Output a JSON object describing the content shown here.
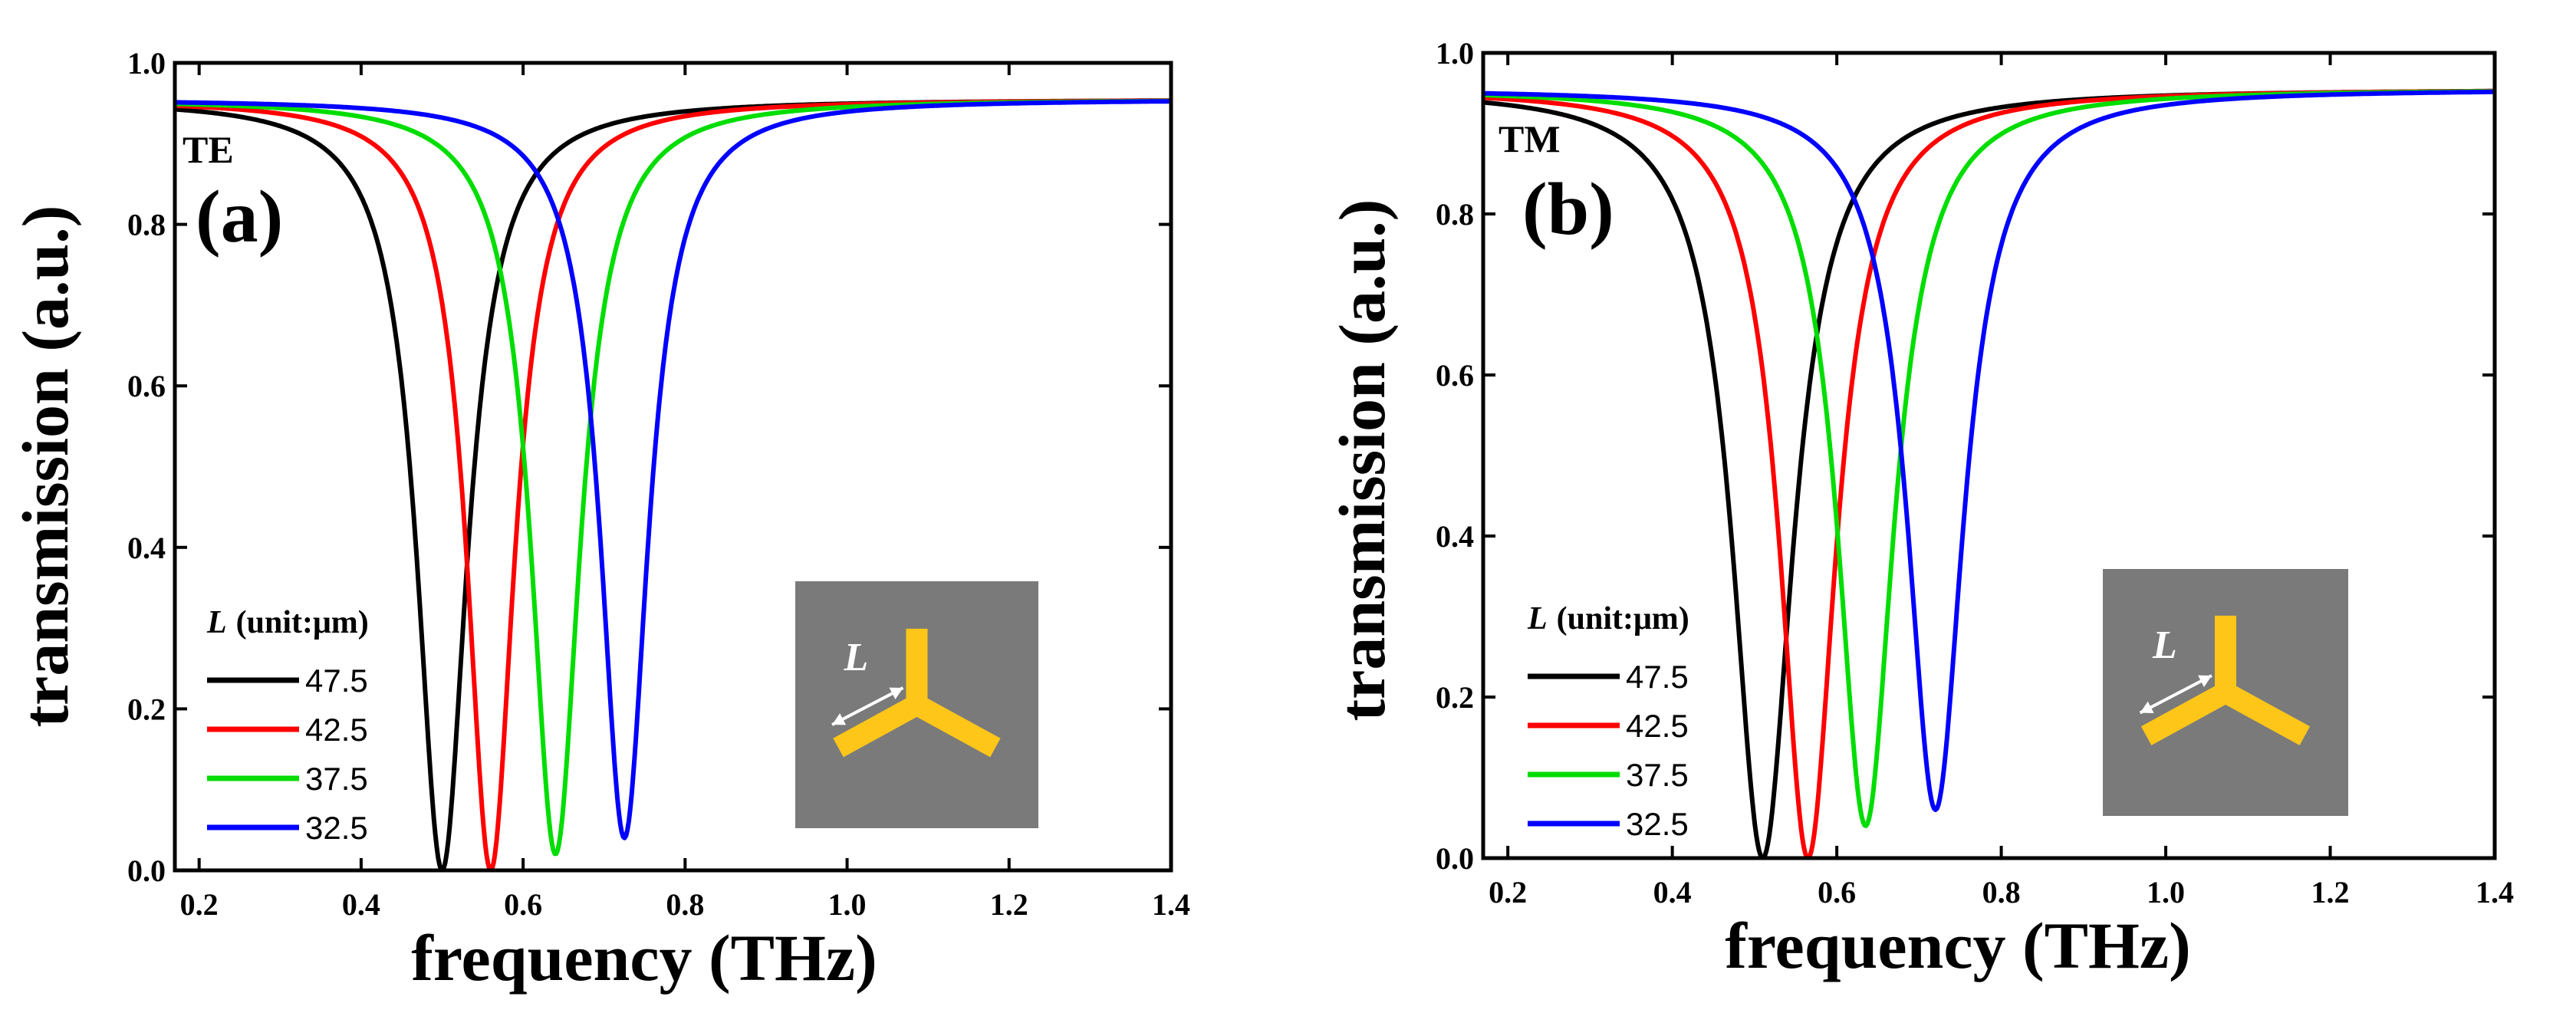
{
  "chart_data": [
    {
      "type": "line",
      "panel_label": "(a)",
      "polarization": "TE",
      "xlabel": "frequency (THz)",
      "ylabel": "transmission (a.u.)",
      "xlim": [
        0.17,
        1.4
      ],
      "ylim": [
        0.0,
        1.0
      ],
      "xticks": [
        0.2,
        0.4,
        0.6,
        0.8,
        1.0,
        1.2,
        1.4
      ],
      "yticks": [
        0.0,
        0.2,
        0.4,
        0.6,
        0.8,
        1.0
      ],
      "xtick_labels": [
        "0.2",
        "0.4",
        "0.6",
        "0.8",
        "1.0",
        "1.2",
        "1.4"
      ],
      "ytick_labels": [
        "0.0",
        "0.2",
        "0.4",
        "0.6",
        "0.8",
        "1.0"
      ],
      "legend_title_var": "L",
      "legend_title_unit": "(unit:μm)",
      "inset_label": "L",
      "series": [
        {
          "name": "47.5",
          "color": "#000000",
          "resonance_thz": 0.5,
          "min_transmission": 0.0,
          "baseline": 0.955,
          "linewidth_thz": 0.038
        },
        {
          "name": "42.5",
          "color": "#ff0000",
          "resonance_thz": 0.56,
          "min_transmission": 0.0,
          "baseline": 0.955,
          "linewidth_thz": 0.036
        },
        {
          "name": "37.5",
          "color": "#00dd00",
          "resonance_thz": 0.64,
          "min_transmission": 0.02,
          "baseline": 0.955,
          "linewidth_thz": 0.037
        },
        {
          "name": "32.5",
          "color": "#0000ff",
          "resonance_thz": 0.725,
          "min_transmission": 0.04,
          "baseline": 0.955,
          "linewidth_thz": 0.036
        }
      ]
    },
    {
      "type": "line",
      "panel_label": "(b)",
      "polarization": "TM",
      "xlabel": "frequency (THz)",
      "ylabel": "transmission (a.u.)",
      "xlim": [
        0.17,
        1.4
      ],
      "ylim": [
        0.0,
        1.0
      ],
      "xticks": [
        0.2,
        0.4,
        0.6,
        0.8,
        1.0,
        1.2,
        1.4
      ],
      "yticks": [
        0.0,
        0.2,
        0.4,
        0.6,
        0.8,
        1.0
      ],
      "xtick_labels": [
        "0.2",
        "0.4",
        "0.6",
        "0.8",
        "1.0",
        "1.2",
        "1.4"
      ],
      "ytick_labels": [
        "0.0",
        "0.2",
        "0.4",
        "0.6",
        "0.8",
        "1.0"
      ],
      "legend_title_var": "L",
      "legend_title_unit": "(unit:μm)",
      "inset_label": "L",
      "series": [
        {
          "name": "47.5",
          "color": "#000000",
          "resonance_thz": 0.51,
          "min_transmission": 0.0,
          "baseline": 0.955,
          "linewidth_thz": 0.045
        },
        {
          "name": "42.5",
          "color": "#ff0000",
          "resonance_thz": 0.565,
          "min_transmission": 0.0,
          "baseline": 0.955,
          "linewidth_thz": 0.042
        },
        {
          "name": "37.5",
          "color": "#00dd00",
          "resonance_thz": 0.635,
          "min_transmission": 0.04,
          "baseline": 0.955,
          "linewidth_thz": 0.042
        },
        {
          "name": "32.5",
          "color": "#0000ff",
          "resonance_thz": 0.72,
          "min_transmission": 0.06,
          "baseline": 0.955,
          "linewidth_thz": 0.042
        }
      ]
    }
  ],
  "colors": {
    "inset_background": "#7a7a7a",
    "inset_tripod": "#ffc61a",
    "inset_arrow": "#ffffff"
  }
}
